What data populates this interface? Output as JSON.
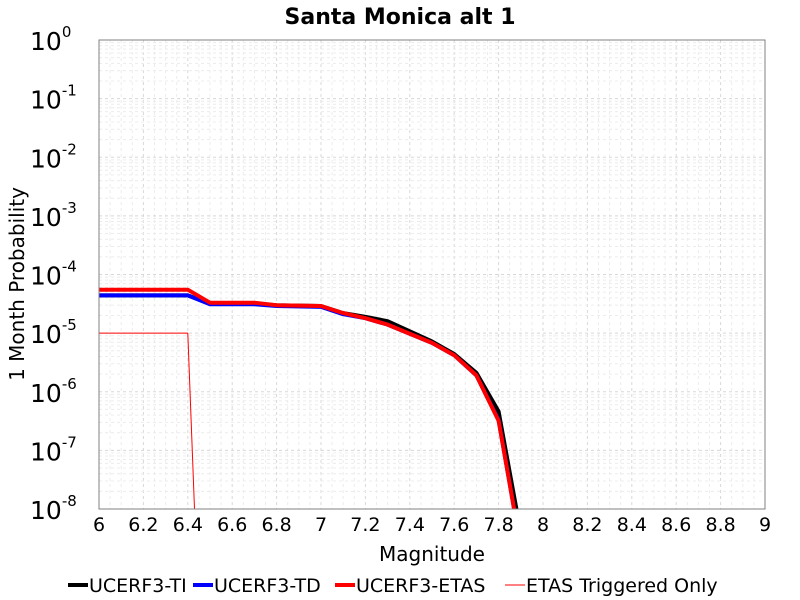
{
  "chart_data": {
    "type": "line",
    "title": "Santa Monica alt 1",
    "xlabel": "Magnitude",
    "ylabel": "1 Month Probability",
    "xlim": [
      6,
      9
    ],
    "ylim": [
      1e-08,
      1
    ],
    "yscale": "log",
    "grid": true,
    "legend_position": "bottom",
    "x_ticks": [
      "6",
      "6.2",
      "6.4",
      "6.6",
      "6.8",
      "7",
      "7.2",
      "7.4",
      "7.6",
      "7.8",
      "8",
      "8.2",
      "8.4",
      "8.6",
      "8.8",
      "9"
    ],
    "y_ticks": [
      {
        "base": "10",
        "exp": "0"
      },
      {
        "base": "10",
        "exp": "-1"
      },
      {
        "base": "10",
        "exp": "-2"
      },
      {
        "base": "10",
        "exp": "-3"
      },
      {
        "base": "10",
        "exp": "-4"
      },
      {
        "base": "10",
        "exp": "-5"
      },
      {
        "base": "10",
        "exp": "-6"
      },
      {
        "base": "10",
        "exp": "-7"
      },
      {
        "base": "10",
        "exp": "-8"
      }
    ],
    "series": [
      {
        "name": "UCERF3-TI",
        "color": "#000000",
        "width": 4,
        "x": [
          6.0,
          6.4,
          6.5,
          6.7,
          6.8,
          7.0,
          7.1,
          7.2,
          7.3,
          7.5,
          7.6,
          7.7,
          7.8,
          7.88
        ],
        "y": [
          4.4e-05,
          4.4e-05,
          3.2e-05,
          3.2e-05,
          3e-05,
          2.9e-05,
          2.2e-05,
          1.9e-05,
          1.6e-05,
          7.2e-06,
          4.4e-06,
          2.1e-06,
          4.6e-07,
          1e-08
        ]
      },
      {
        "name": "UCERF3-TD",
        "color": "#0000ff",
        "width": 4,
        "x": [
          6.0,
          6.4,
          6.5,
          6.7,
          6.8,
          7.0,
          7.1,
          7.2,
          7.3,
          7.5,
          7.6,
          7.7,
          7.8,
          7.87
        ],
        "y": [
          4.4e-05,
          4.4e-05,
          3.1e-05,
          3.1e-05,
          2.9e-05,
          2.8e-05,
          2.1e-05,
          1.8e-05,
          1.4e-05,
          6.8e-06,
          4.2e-06,
          1.9e-06,
          3.3e-07,
          1e-08
        ]
      },
      {
        "name": "UCERF3-ETAS",
        "color": "#ff0000",
        "width": 4,
        "x": [
          6.0,
          6.4,
          6.5,
          6.7,
          6.8,
          7.0,
          7.1,
          7.2,
          7.3,
          7.5,
          7.6,
          7.7,
          7.8,
          7.87
        ],
        "y": [
          5.5e-05,
          5.5e-05,
          3.3e-05,
          3.3e-05,
          3e-05,
          2.9e-05,
          2.2e-05,
          1.8e-05,
          1.4e-05,
          6.8e-06,
          4.2e-06,
          1.9e-06,
          3.2e-07,
          1e-08
        ]
      },
      {
        "name": "ETAS Triggered Only",
        "color": "#ff0000",
        "width": 1,
        "x": [
          6.0,
          6.4,
          6.43
        ],
        "y": [
          1e-05,
          1e-05,
          1e-08
        ]
      }
    ]
  }
}
